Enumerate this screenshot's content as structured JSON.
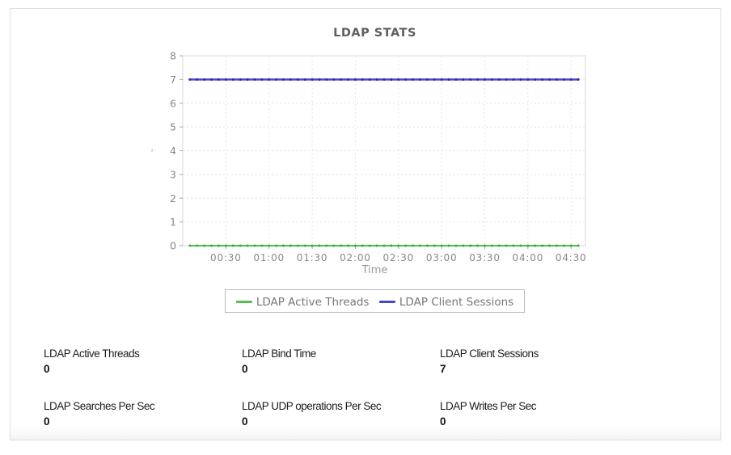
{
  "chart": {
    "title": "LDAP STATS",
    "xlabel": "Time",
    "ylabel": "-"
  },
  "chart_data": {
    "type": "line",
    "title": "LDAP STATS",
    "xlabel": "Time",
    "ylabel": "",
    "ylim": [
      0,
      8
    ],
    "y_ticks": [
      0,
      1,
      2,
      3,
      4,
      5,
      6,
      7,
      8
    ],
    "x_ticks": [
      {
        "label": "00:30",
        "min": 30
      },
      {
        "label": "01:00",
        "min": 60
      },
      {
        "label": "01:30",
        "min": 90
      },
      {
        "label": "02:00",
        "min": 120
      },
      {
        "label": "02:30",
        "min": 150
      },
      {
        "label": "03:00",
        "min": 180
      },
      {
        "label": "03:30",
        "min": 210
      },
      {
        "label": "04:00",
        "min": 240
      },
      {
        "label": "04:30",
        "min": 270
      }
    ],
    "x_range_min": [
      0,
      280
    ],
    "sample_start_min": 5,
    "sample_end_min": 275,
    "sample_every_min": 5,
    "grid": true,
    "legend_position": "bottom",
    "series": [
      {
        "name": "LDAP Active Threads",
        "color": "#4dc24d",
        "marker_color": "#3aa83a",
        "constant_value": 0,
        "line_width": 2
      },
      {
        "name": "LDAP Client Sessions",
        "color": "#4646cd",
        "marker_color": "#2727ac",
        "constant_value": 7,
        "line_width": 2.4
      }
    ]
  },
  "stats": {
    "cells": [
      {
        "label": "LDAP Active Threads",
        "value": "0"
      },
      {
        "label": "LDAP Bind Time",
        "value": "0"
      },
      {
        "label": "LDAP Client Sessions",
        "value": "7"
      },
      {
        "label": "LDAP Searches Per Sec",
        "value": "0"
      },
      {
        "label": "LDAP UDP operations Per Sec",
        "value": "0"
      },
      {
        "label": "LDAP Writes Per Sec",
        "value": "0"
      }
    ]
  },
  "colors": {
    "card_border": "#e0e0e0",
    "grid_line": "#e4e4e4",
    "plot_border": "#d8d8d8",
    "axis_tick": "#aaaaaa",
    "tick_text": "#888888",
    "title_text": "#5f5f5f",
    "legend_text": "#777777",
    "legend_border": "#bbbbbb"
  }
}
